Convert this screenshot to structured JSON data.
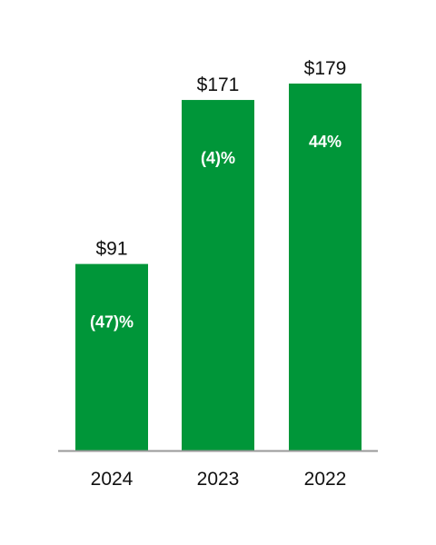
{
  "chart_data": {
    "type": "bar",
    "categories": [
      "2024",
      "2023",
      "2022"
    ],
    "values": [
      91,
      171,
      179
    ],
    "value_labels": [
      "$91",
      "$171",
      "$179"
    ],
    "change_labels": [
      "(47)%",
      "(4)%",
      "44%"
    ],
    "title": "",
    "xlabel": "",
    "ylabel": "",
    "ylim": [
      0,
      179
    ],
    "grid": false,
    "legend": "none",
    "colors": {
      "bar": "#009639",
      "axis": "#999999",
      "text": "#111111",
      "change_text": "#ffffff"
    }
  }
}
